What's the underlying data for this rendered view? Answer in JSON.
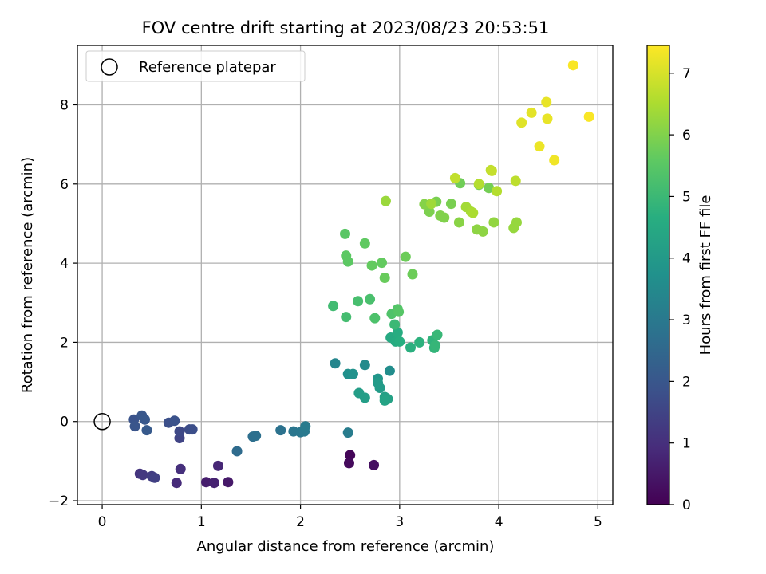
{
  "chart_data": {
    "type": "scatter",
    "title": "FOV centre drift starting at 2023/08/23 20:53:51",
    "xlabel": "Angular distance from reference (arcmin)",
    "ylabel": "Rotation from reference (arcmin)",
    "xlim": [
      -0.25,
      5.15
    ],
    "ylim": [
      -2.1,
      9.5
    ],
    "xticks": [
      0,
      1,
      2,
      3,
      4,
      5
    ],
    "yticks": [
      -2,
      0,
      2,
      4,
      6,
      8
    ],
    "grid": true,
    "legend": {
      "placement": "top-left",
      "entries": [
        "Reference platepar"
      ]
    },
    "reference_point": {
      "x": 0,
      "y": 0,
      "label": "Reference platepar"
    },
    "colorbar": {
      "label": "Hours from first FF file",
      "colormap": "viridis",
      "range": [
        0,
        7.45
      ],
      "ticks": [
        0,
        1,
        2,
        3,
        4,
        5,
        6,
        7
      ]
    },
    "points": [
      {
        "x": 2.5,
        "y": -0.85,
        "c": 0.1
      },
      {
        "x": 2.49,
        "y": -1.05,
        "c": 0.2
      },
      {
        "x": 2.74,
        "y": -1.1,
        "c": 0.3
      },
      {
        "x": 1.27,
        "y": -1.53,
        "c": 0.5
      },
      {
        "x": 1.05,
        "y": -1.53,
        "c": 0.6
      },
      {
        "x": 1.13,
        "y": -1.55,
        "c": 0.7
      },
      {
        "x": 1.17,
        "y": -1.12,
        "c": 0.8
      },
      {
        "x": 0.75,
        "y": -1.55,
        "c": 0.9
      },
      {
        "x": 0.79,
        "y": -1.2,
        "c": 1.0
      },
      {
        "x": 0.38,
        "y": -1.32,
        "c": 1.1
      },
      {
        "x": 0.41,
        "y": -1.35,
        "c": 1.2
      },
      {
        "x": 0.5,
        "y": -1.38,
        "c": 1.3
      },
      {
        "x": 0.53,
        "y": -1.42,
        "c": 1.4
      },
      {
        "x": 0.78,
        "y": -0.42,
        "c": 1.5
      },
      {
        "x": 0.78,
        "y": -0.25,
        "c": 1.6
      },
      {
        "x": 0.88,
        "y": -0.2,
        "c": 1.7
      },
      {
        "x": 0.91,
        "y": -0.2,
        "c": 1.75
      },
      {
        "x": 0.67,
        "y": -0.03,
        "c": 1.8
      },
      {
        "x": 0.73,
        "y": 0.02,
        "c": 1.85
      },
      {
        "x": 0.32,
        "y": 0.05,
        "c": 1.9
      },
      {
        "x": 0.33,
        "y": -0.12,
        "c": 1.95
      },
      {
        "x": 0.4,
        "y": 0.15,
        "c": 2.0
      },
      {
        "x": 0.43,
        "y": 0.05,
        "c": 2.05
      },
      {
        "x": 0.45,
        "y": -0.22,
        "c": 2.1
      },
      {
        "x": 1.36,
        "y": -0.75,
        "c": 2.6
      },
      {
        "x": 1.52,
        "y": -0.38,
        "c": 2.7
      },
      {
        "x": 1.55,
        "y": -0.36,
        "c": 2.75
      },
      {
        "x": 1.8,
        "y": -0.22,
        "c": 2.8
      },
      {
        "x": 1.93,
        "y": -0.25,
        "c": 2.9
      },
      {
        "x": 2.0,
        "y": -0.27,
        "c": 2.95
      },
      {
        "x": 2.04,
        "y": -0.25,
        "c": 3.0
      },
      {
        "x": 2.05,
        "y": -0.12,
        "c": 3.05
      },
      {
        "x": 2.48,
        "y": -0.28,
        "c": 3.1
      },
      {
        "x": 2.35,
        "y": 1.47,
        "c": 3.4
      },
      {
        "x": 2.65,
        "y": 1.43,
        "c": 3.5
      },
      {
        "x": 2.9,
        "y": 1.28,
        "c": 3.6
      },
      {
        "x": 2.48,
        "y": 1.2,
        "c": 3.7
      },
      {
        "x": 2.53,
        "y": 1.2,
        "c": 3.75
      },
      {
        "x": 2.78,
        "y": 1.08,
        "c": 3.9
      },
      {
        "x": 2.78,
        "y": 0.98,
        "c": 4.0
      },
      {
        "x": 2.8,
        "y": 0.85,
        "c": 4.05
      },
      {
        "x": 2.59,
        "y": 0.72,
        "c": 4.1
      },
      {
        "x": 2.65,
        "y": 0.6,
        "c": 4.15
      },
      {
        "x": 2.85,
        "y": 0.62,
        "c": 4.2
      },
      {
        "x": 2.88,
        "y": 0.57,
        "c": 4.25
      },
      {
        "x": 2.85,
        "y": 0.53,
        "c": 4.3
      },
      {
        "x": 2.91,
        "y": 2.12,
        "c": 4.5
      },
      {
        "x": 2.96,
        "y": 2.02,
        "c": 4.55
      },
      {
        "x": 2.98,
        "y": 2.25,
        "c": 4.6
      },
      {
        "x": 3.0,
        "y": 2.02,
        "c": 4.65
      },
      {
        "x": 3.11,
        "y": 1.87,
        "c": 4.7
      },
      {
        "x": 3.2,
        "y": 2.0,
        "c": 4.75
      },
      {
        "x": 3.33,
        "y": 2.05,
        "c": 4.8
      },
      {
        "x": 3.35,
        "y": 1.86,
        "c": 4.85
      },
      {
        "x": 3.36,
        "y": 1.92,
        "c": 4.9
      },
      {
        "x": 3.38,
        "y": 2.19,
        "c": 4.95
      },
      {
        "x": 2.95,
        "y": 2.45,
        "c": 5.0
      },
      {
        "x": 2.33,
        "y": 2.92,
        "c": 5.1
      },
      {
        "x": 2.46,
        "y": 2.64,
        "c": 5.15
      },
      {
        "x": 2.58,
        "y": 3.04,
        "c": 5.2
      },
      {
        "x": 2.7,
        "y": 3.09,
        "c": 5.25
      },
      {
        "x": 2.75,
        "y": 2.61,
        "c": 5.3
      },
      {
        "x": 2.92,
        "y": 2.72,
        "c": 5.35
      },
      {
        "x": 2.98,
        "y": 2.84,
        "c": 5.4
      },
      {
        "x": 2.99,
        "y": 2.77,
        "c": 5.45
      },
      {
        "x": 2.45,
        "y": 4.74,
        "c": 5.5
      },
      {
        "x": 2.46,
        "y": 4.19,
        "c": 5.55
      },
      {
        "x": 2.48,
        "y": 4.04,
        "c": 5.55
      },
      {
        "x": 2.65,
        "y": 4.5,
        "c": 5.6
      },
      {
        "x": 2.72,
        "y": 3.94,
        "c": 5.65
      },
      {
        "x": 2.82,
        "y": 4.01,
        "c": 5.65
      },
      {
        "x": 2.85,
        "y": 3.63,
        "c": 5.7
      },
      {
        "x": 3.06,
        "y": 4.16,
        "c": 5.75
      },
      {
        "x": 3.13,
        "y": 3.72,
        "c": 5.75
      },
      {
        "x": 3.61,
        "y": 6.02,
        "c": 5.8
      },
      {
        "x": 3.8,
        "y": 5.98,
        "c": 5.85
      },
      {
        "x": 3.9,
        "y": 5.9,
        "c": 5.85
      },
      {
        "x": 3.37,
        "y": 5.55,
        "c": 5.9
      },
      {
        "x": 3.52,
        "y": 5.5,
        "c": 5.9
      },
      {
        "x": 3.3,
        "y": 5.3,
        "c": 5.95
      },
      {
        "x": 3.41,
        "y": 5.2,
        "c": 6.0
      },
      {
        "x": 3.45,
        "y": 5.15,
        "c": 6.0
      },
      {
        "x": 3.25,
        "y": 5.49,
        "c": 6.05
      },
      {
        "x": 3.6,
        "y": 5.03,
        "c": 6.1
      },
      {
        "x": 3.78,
        "y": 4.85,
        "c": 6.15
      },
      {
        "x": 3.84,
        "y": 4.8,
        "c": 6.15
      },
      {
        "x": 3.95,
        "y": 5.03,
        "c": 6.2
      },
      {
        "x": 4.15,
        "y": 4.89,
        "c": 6.25
      },
      {
        "x": 4.18,
        "y": 5.03,
        "c": 6.25
      },
      {
        "x": 2.86,
        "y": 5.57,
        "c": 6.3
      },
      {
        "x": 3.32,
        "y": 5.5,
        "c": 6.35
      },
      {
        "x": 3.67,
        "y": 5.42,
        "c": 6.4
      },
      {
        "x": 3.72,
        "y": 5.3,
        "c": 6.45
      },
      {
        "x": 3.74,
        "y": 5.27,
        "c": 6.5
      },
      {
        "x": 3.8,
        "y": 6.0,
        "c": 6.6
      },
      {
        "x": 3.98,
        "y": 5.82,
        "c": 6.6
      },
      {
        "x": 3.92,
        "y": 6.35,
        "c": 6.7
      },
      {
        "x": 4.17,
        "y": 6.08,
        "c": 6.7
      },
      {
        "x": 3.56,
        "y": 6.15,
        "c": 6.75
      },
      {
        "x": 3.93,
        "y": 6.33,
        "c": 6.8
      },
      {
        "x": 4.23,
        "y": 7.55,
        "c": 7.1
      },
      {
        "x": 4.33,
        "y": 7.8,
        "c": 7.15
      },
      {
        "x": 4.48,
        "y": 8.07,
        "c": 7.2
      },
      {
        "x": 4.49,
        "y": 7.65,
        "c": 7.2
      },
      {
        "x": 4.41,
        "y": 6.95,
        "c": 7.25
      },
      {
        "x": 4.56,
        "y": 6.6,
        "c": 7.3
      },
      {
        "x": 4.75,
        "y": 9.0,
        "c": 7.4
      },
      {
        "x": 4.91,
        "y": 7.7,
        "c": 7.4
      }
    ]
  }
}
